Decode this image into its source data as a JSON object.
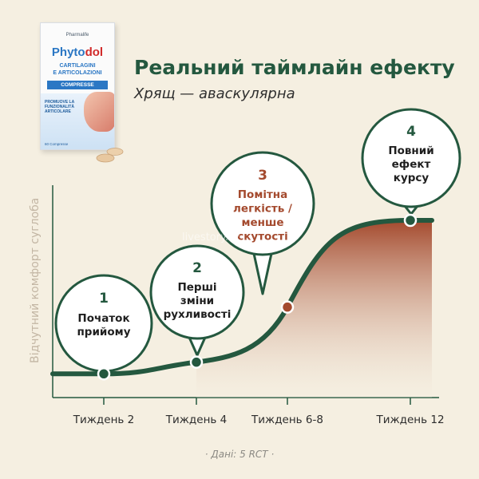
{
  "product": {
    "maker": "Pharmalife",
    "brand_prefix": "Phyto",
    "brand_highlight": "dol",
    "line1": "CARTILAGINI",
    "line2": "E ARTICOLAZIONI",
    "form": "COMPRESSE",
    "promo": "PROMUOVE LA FUNZIONALITÀ ARTICOLARE",
    "count": "60 Compresse"
  },
  "title": "Реальний таймлайн ефекту",
  "subtitle": "Хрящ — аваскулярна",
  "watermark": "livestory.kz",
  "source": "· Дані: 5 RCT ·",
  "colors": {
    "green": "#24583f",
    "accent": "#a44a2e",
    "background": "#f5efe1"
  },
  "chart_data": {
    "type": "area",
    "title": "",
    "xlabel": "",
    "ylabel": "Відчутний комфорт суглоба",
    "x_tick_labels": [
      "Тиждень 2",
      "Тиждень 4",
      "Тиждень 6-8",
      "Тиждень 12"
    ],
    "milestones": [
      {
        "number": "1",
        "label": [
          "Початок",
          "прийому"
        ],
        "x_index": 0,
        "level": 0.08,
        "highlight": false
      },
      {
        "number": "2",
        "label": [
          "Перші",
          "зміни",
          "рухливості"
        ],
        "x_index": 1,
        "level": 0.15,
        "highlight": false
      },
      {
        "number": "3",
        "label": [
          "Помітна",
          "легкість /",
          "менше",
          "скутості"
        ],
        "x_index": 2,
        "level": 0.48,
        "highlight": true
      },
      {
        "number": "4",
        "label": [
          "Повний",
          "ефект",
          "курсу"
        ],
        "x_index": 3,
        "level": 1.0,
        "highlight": false
      }
    ]
  }
}
